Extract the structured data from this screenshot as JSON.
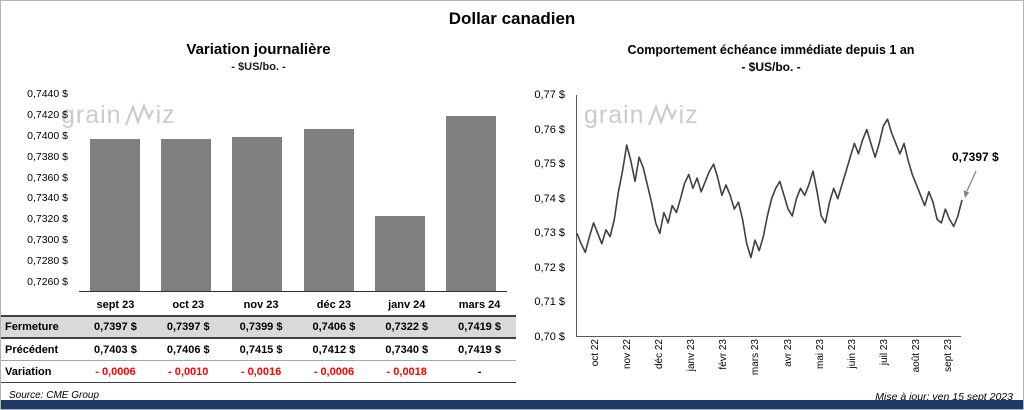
{
  "title": "Dollar canadien",
  "watermark": {
    "prefix": "grain",
    "suffix": "iz"
  },
  "footer": {
    "source": "Source: CME Group",
    "updated": "Mise à jour: ven 15 sept 2023"
  },
  "chart_data": [
    {
      "type": "bar",
      "title": "Variation journalière",
      "subtitle": "- $US/bo. -",
      "categories": [
        "sept 23",
        "oct 23",
        "nov 23",
        "déc 23",
        "janv 24",
        "mars 24"
      ],
      "values": [
        0.7397,
        0.7397,
        0.7399,
        0.7406,
        0.7322,
        0.7419
      ],
      "axis_range": [
        0.725,
        0.7445
      ],
      "ytick_values": [
        0.744,
        0.742,
        0.74,
        0.738,
        0.736,
        0.734,
        0.732,
        0.73,
        0.728,
        0.726
      ],
      "ytick_labels": [
        "0,7440 $",
        "0,7420 $",
        "0,7400 $",
        "0,7380 $",
        "0,7360 $",
        "0,7340 $",
        "0,7320 $",
        "0,7300 $",
        "0,7280 $",
        "0,7260 $"
      ],
      "bar_color": "#7f7f7f",
      "grid": false,
      "legend": false
    },
    {
      "type": "line",
      "title": "Comportement échéance immédiate depuis 1 an",
      "subtitle": "- $US/bo. -",
      "x_labels": [
        "oct 22",
        "nov 22",
        "déc 22",
        "janv 23",
        "févr 23",
        "mars 23",
        "avr 23",
        "mai 23",
        "juin 23",
        "juil 23",
        "août 23",
        "sept 23"
      ],
      "ylim": [
        0.7,
        0.77
      ],
      "ytick_values": [
        0.77,
        0.76,
        0.75,
        0.74,
        0.73,
        0.72,
        0.71,
        0.7
      ],
      "ytick_labels": [
        "0,77 $",
        "0,76 $",
        "0,75 $",
        "0,74 $",
        "0,73 $",
        "0,72 $",
        "0,71 $",
        "0,70 $"
      ],
      "annotation": "0,7397 $",
      "last_value": 0.7397,
      "line_color": "#404040",
      "grid": false,
      "legend": false,
      "values": [
        0.73,
        0.727,
        0.7245,
        0.729,
        0.733,
        0.73,
        0.727,
        0.731,
        0.729,
        0.734,
        0.742,
        0.748,
        0.7555,
        0.751,
        0.745,
        0.752,
        0.749,
        0.744,
        0.739,
        0.733,
        0.73,
        0.736,
        0.733,
        0.738,
        0.736,
        0.74,
        0.7445,
        0.747,
        0.743,
        0.746,
        0.742,
        0.745,
        0.748,
        0.75,
        0.746,
        0.741,
        0.744,
        0.741,
        0.737,
        0.739,
        0.734,
        0.727,
        0.723,
        0.728,
        0.725,
        0.729,
        0.735,
        0.74,
        0.743,
        0.745,
        0.741,
        0.737,
        0.735,
        0.74,
        0.743,
        0.741,
        0.744,
        0.748,
        0.742,
        0.735,
        0.733,
        0.739,
        0.743,
        0.74,
        0.744,
        0.748,
        0.752,
        0.756,
        0.753,
        0.757,
        0.76,
        0.756,
        0.752,
        0.756,
        0.761,
        0.763,
        0.759,
        0.756,
        0.753,
        0.756,
        0.751,
        0.747,
        0.744,
        0.741,
        0.738,
        0.742,
        0.739,
        0.734,
        0.733,
        0.737,
        0.734,
        0.732,
        0.735,
        0.7397
      ]
    }
  ],
  "table": {
    "columns": [
      "",
      "sept 23",
      "oct 23",
      "nov 23",
      "déc 23",
      "janv 24",
      "mars 24"
    ],
    "rows": [
      {
        "label": "Fermeture",
        "values": [
          "0,7397 $",
          "0,7397 $",
          "0,7399 $",
          "0,7406 $",
          "0,7322 $",
          "0,7419 $"
        ],
        "style": "shaded"
      },
      {
        "label": "Précédent",
        "values": [
          "0,7403 $",
          "0,7406 $",
          "0,7415 $",
          "0,7412 $",
          "0,7340 $",
          "0,7419 $"
        ],
        "style": "plain"
      },
      {
        "label": "Variation",
        "values": [
          "- 0,0006",
          "- 0,0010",
          "- 0,0016",
          "- 0,0006",
          "- 0,0018",
          "-"
        ],
        "style": "negative"
      }
    ]
  }
}
